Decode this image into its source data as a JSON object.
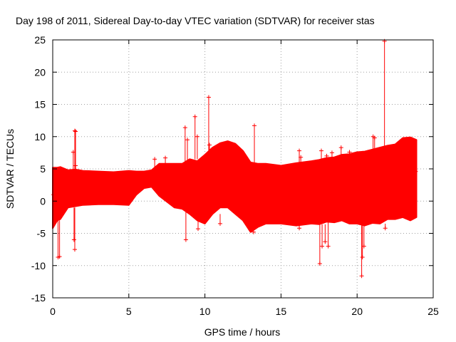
{
  "chart_data": {
    "type": "scatter",
    "title": "Day 198 of 2011, Sidereal Day-to-day VTEC variation (SDTVAR) for receiver stas",
    "xlabel": "GPS time / hours",
    "ylabel": "SDTVAR / TECUs",
    "xlim": [
      0,
      25
    ],
    "ylim": [
      -15,
      25
    ],
    "xticks": [
      "0",
      "5",
      "10",
      "15",
      "20",
      "25"
    ],
    "yticks": [
      "-15",
      "-10",
      "-5",
      "0",
      "5",
      "10",
      "15",
      "20",
      "25"
    ],
    "grid": true,
    "marker": "plus",
    "series": [
      {
        "name": "SDTVAR",
        "color": "#ff0000",
        "band_x": [
          0.0,
          0.3,
          0.5,
          1.0,
          1.5,
          2.0,
          3.0,
          4.0,
          5.0,
          5.5,
          6.0,
          6.5,
          7.0,
          8.0,
          8.5,
          9.0,
          9.5,
          10.0,
          10.5,
          11.0,
          11.5,
          12.0,
          12.5,
          13.0,
          13.5,
          14.0,
          15.0,
          16.0,
          17.0,
          17.5,
          18.0,
          18.5,
          19.0,
          19.5,
          20.0,
          20.5,
          21.0,
          21.5,
          22.0,
          22.5,
          23.0,
          23.5,
          23.9
        ],
        "band_upper": [
          5.2,
          5.2,
          5.3,
          4.8,
          4.9,
          4.7,
          4.6,
          4.5,
          4.7,
          4.6,
          4.6,
          4.8,
          5.8,
          5.8,
          5.8,
          6.5,
          6.2,
          7.2,
          8.3,
          9.0,
          9.3,
          8.9,
          7.8,
          6.0,
          5.8,
          5.8,
          5.5,
          5.9,
          6.2,
          6.4,
          6.7,
          6.8,
          7.2,
          7.3,
          7.6,
          7.7,
          8.0,
          8.3,
          8.6,
          8.8,
          9.8,
          9.9,
          9.5
        ],
        "band_lower": [
          -4.2,
          -3.0,
          -2.8,
          -1.0,
          -0.8,
          -0.6,
          -0.5,
          -0.5,
          -0.6,
          1.0,
          2.0,
          2.2,
          0.8,
          -1.0,
          -1.2,
          -2.0,
          -3.0,
          -3.5,
          -2.0,
          -1.0,
          -1.0,
          -2.0,
          -3.0,
          -4.8,
          -4.0,
          -3.5,
          -3.5,
          -3.8,
          -3.5,
          -3.6,
          -3.2,
          -3.3,
          -3.0,
          -3.5,
          -3.5,
          -3.8,
          -3.4,
          -3.5,
          -2.8,
          -2.8,
          -2.5,
          -3.0,
          -2.5
        ],
        "outliers": [
          {
            "x": 0.35,
            "y": -8.7
          },
          {
            "x": 0.45,
            "y": -8.6
          },
          {
            "x": 1.45,
            "y": 10.9
          },
          {
            "x": 1.5,
            "y": 10.8
          },
          {
            "x": 1.35,
            "y": 7.6
          },
          {
            "x": 1.4,
            "y": -6.0
          },
          {
            "x": 1.45,
            "y": -7.5
          },
          {
            "x": 1.5,
            "y": 5.5
          },
          {
            "x": 6.7,
            "y": 6.5
          },
          {
            "x": 7.4,
            "y": 6.7
          },
          {
            "x": 8.7,
            "y": 11.4
          },
          {
            "x": 8.75,
            "y": -6.0
          },
          {
            "x": 8.85,
            "y": 9.5
          },
          {
            "x": 9.35,
            "y": 13.1
          },
          {
            "x": 9.5,
            "y": 10.0
          },
          {
            "x": 9.55,
            "y": -4.3
          },
          {
            "x": 10.25,
            "y": 16.1
          },
          {
            "x": 10.3,
            "y": 8.7
          },
          {
            "x": 11.0,
            "y": -3.5
          },
          {
            "x": 13.25,
            "y": 11.7
          },
          {
            "x": 13.2,
            "y": -4.8
          },
          {
            "x": 16.2,
            "y": 7.8
          },
          {
            "x": 16.3,
            "y": 6.8
          },
          {
            "x": 16.2,
            "y": -4.2
          },
          {
            "x": 17.55,
            "y": -9.7
          },
          {
            "x": 17.65,
            "y": 7.8
          },
          {
            "x": 17.7,
            "y": -7.0
          },
          {
            "x": 17.9,
            "y": -6.3
          },
          {
            "x": 18.0,
            "y": 7.0
          },
          {
            "x": 18.1,
            "y": -7.0
          },
          {
            "x": 18.35,
            "y": 7.5
          },
          {
            "x": 18.95,
            "y": 8.3
          },
          {
            "x": 19.5,
            "y": 7.6
          },
          {
            "x": 20.3,
            "y": -11.6
          },
          {
            "x": 20.35,
            "y": -8.7
          },
          {
            "x": 20.45,
            "y": -7.0
          },
          {
            "x": 20.7,
            "y": 7.6
          },
          {
            "x": 21.05,
            "y": 10.0
          },
          {
            "x": 21.15,
            "y": 9.8
          },
          {
            "x": 21.4,
            "y": 7.8
          },
          {
            "x": 21.8,
            "y": 24.8
          },
          {
            "x": 21.85,
            "y": -4.2
          },
          {
            "x": 21.8,
            "y": -2.0
          },
          {
            "x": 23.85,
            "y": 4.6
          },
          {
            "x": 23.8,
            "y": -1.0
          },
          {
            "x": 0.05,
            "y": 1.0
          },
          {
            "x": 0.1,
            "y": -1.5
          }
        ]
      }
    ]
  }
}
